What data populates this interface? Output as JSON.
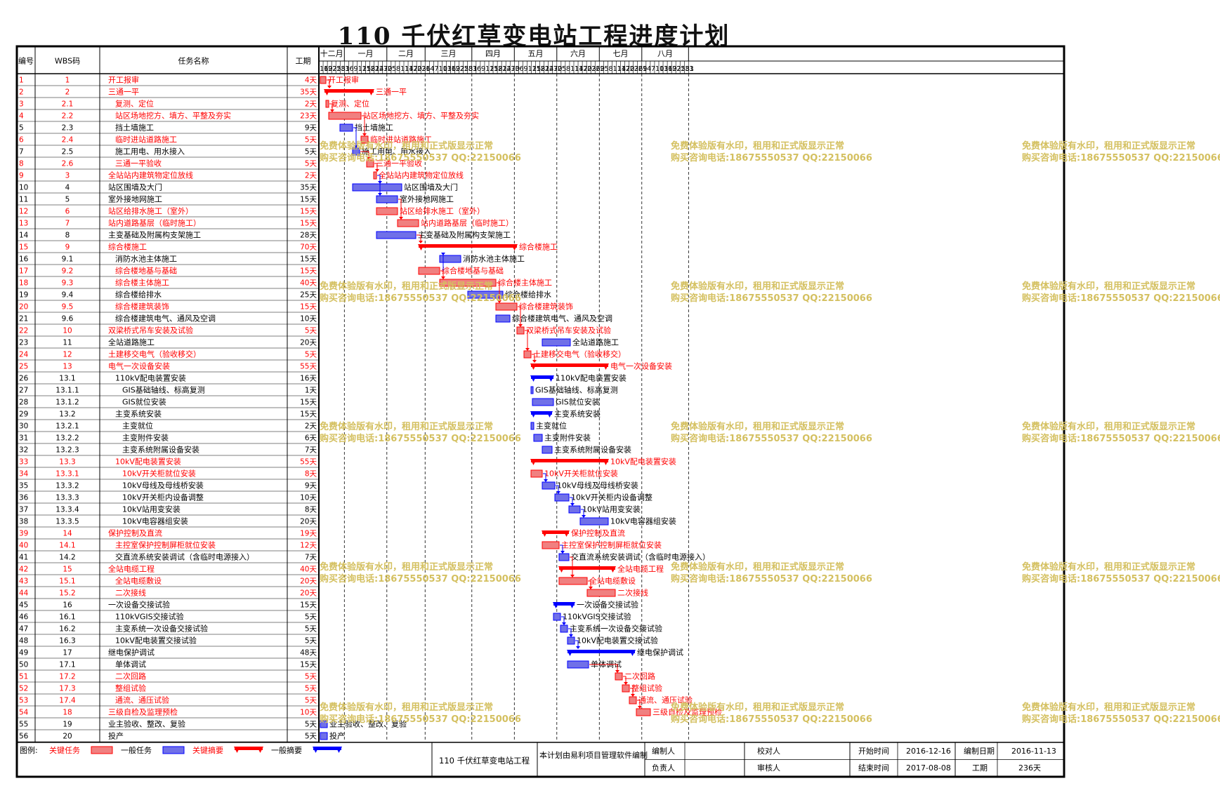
{
  "title": "110 千伏红草变电站工程进度计划",
  "headers": {
    "no": "编号",
    "wbs": "WBS码",
    "name": "任务名称",
    "dur": "工期"
  },
  "chart_data": {
    "type": "gantt",
    "months": [
      {
        "label": "十二月",
        "days": [
          "16",
          "19",
          "22",
          "25",
          "28",
          "31"
        ]
      },
      {
        "label": "一月",
        "days": [
          "3",
          "6",
          "9",
          "12",
          "15",
          "18",
          "21",
          "24",
          "27",
          "30"
        ]
      },
      {
        "label": "二月",
        "days": [
          "2",
          "5",
          "8",
          "11",
          "14",
          "17",
          "20",
          "23",
          "26"
        ]
      },
      {
        "label": "三月",
        "days": [
          "1",
          "4",
          "7",
          "10",
          "13",
          "16",
          "19",
          "22",
          "25",
          "28",
          "31"
        ]
      },
      {
        "label": "四月",
        "days": [
          "3",
          "6",
          "9",
          "12",
          "15",
          "18",
          "21",
          "24",
          "27",
          "30"
        ]
      },
      {
        "label": "五月",
        "days": [
          "3",
          "6",
          "9",
          "12",
          "15",
          "18",
          "21",
          "24",
          "27",
          "30"
        ]
      },
      {
        "label": "六月",
        "days": [
          "2",
          "5",
          "8",
          "11",
          "14",
          "17",
          "20",
          "23",
          "26",
          "29"
        ]
      },
      {
        "label": "七月",
        "days": [
          "2",
          "5",
          "8",
          "11",
          "14",
          "17",
          "20",
          "23",
          "26",
          "29"
        ]
      },
      {
        "label": "八月",
        "days": [
          "1",
          "4",
          "7",
          "10",
          "13",
          "16",
          "19",
          "22",
          "25",
          "28",
          "31"
        ]
      },
      {
        "label": "",
        "days": [
          "3"
        ]
      }
    ],
    "tasks": [
      {
        "no": "1",
        "wbs": "1",
        "name": "开工报审",
        "dur": "4天",
        "start": 0,
        "days": 4,
        "kind": "ct"
      },
      {
        "no": "2",
        "wbs": "2",
        "name": "三通一平",
        "dur": "35天",
        "start": 3,
        "days": 35,
        "kind": "cs"
      },
      {
        "no": "3",
        "wbs": "2.1",
        "name": "复测、定位",
        "dur": "2天",
        "start": 4,
        "days": 2,
        "kind": "ct"
      },
      {
        "no": "4",
        "wbs": "2.2",
        "name": "站区场地挖方、填方、平整及夯实",
        "dur": "23天",
        "start": 6,
        "days": 23,
        "kind": "ct"
      },
      {
        "no": "5",
        "wbs": "2.3",
        "name": "挡土墙施工",
        "dur": "9天",
        "start": 14,
        "days": 9,
        "kind": "nt"
      },
      {
        "no": "6",
        "wbs": "2.4",
        "name": "临时进站道路施工",
        "dur": "5天",
        "start": 29,
        "days": 5,
        "kind": "ct"
      },
      {
        "no": "7",
        "wbs": "2.5",
        "name": "施工用电、用水接入",
        "dur": "5天",
        "start": 23,
        "days": 5,
        "kind": "nt"
      },
      {
        "no": "8",
        "wbs": "2.6",
        "name": "三通一平验收",
        "dur": "5天",
        "start": 33,
        "days": 5,
        "kind": "ct"
      },
      {
        "no": "9",
        "wbs": "3",
        "name": "全站站内建筑物定位放线",
        "dur": "2天",
        "start": 38,
        "days": 2,
        "kind": "ct"
      },
      {
        "no": "10",
        "wbs": "4",
        "name": "站区围墙及大门",
        "dur": "35天",
        "start": 23,
        "days": 35,
        "kind": "nt"
      },
      {
        "no": "11",
        "wbs": "5",
        "name": "室外接地网施工",
        "dur": "15天",
        "start": 40,
        "days": 15,
        "kind": "nt"
      },
      {
        "no": "12",
        "wbs": "6",
        "name": "站区给排水施工（室外）",
        "dur": "15天",
        "start": 40,
        "days": 15,
        "kind": "ct"
      },
      {
        "no": "13",
        "wbs": "7",
        "name": "站内道路基层（临时施工）",
        "dur": "15天",
        "start": 55,
        "days": 15,
        "kind": "ct"
      },
      {
        "no": "14",
        "wbs": "8",
        "name": "主变基础及附属构支架施工",
        "dur": "28天",
        "start": 40,
        "days": 28,
        "kind": "nt"
      },
      {
        "no": "15",
        "wbs": "9",
        "name": "综合楼施工",
        "dur": "70天",
        "start": 70,
        "days": 70,
        "kind": "cs"
      },
      {
        "no": "16",
        "wbs": "9.1",
        "name": "消防水池主体施工",
        "dur": "15天",
        "start": 85,
        "days": 15,
        "kind": "nt"
      },
      {
        "no": "17",
        "wbs": "9.2",
        "name": "综合楼地基与基础",
        "dur": "15天",
        "start": 70,
        "days": 15,
        "kind": "ct"
      },
      {
        "no": "18",
        "wbs": "9.3",
        "name": "综合楼主体施工",
        "dur": "40天",
        "start": 85,
        "days": 40,
        "kind": "ct"
      },
      {
        "no": "19",
        "wbs": "9.4",
        "name": "综合楼给排水",
        "dur": "25天",
        "start": 105,
        "days": 25,
        "kind": "nt"
      },
      {
        "no": "20",
        "wbs": "9.5",
        "name": "综合楼建筑装饰",
        "dur": "15天",
        "start": 125,
        "days": 15,
        "kind": "ct"
      },
      {
        "no": "21",
        "wbs": "9.6",
        "name": "综合楼建筑电气、通风及空调",
        "dur": "10天",
        "start": 125,
        "days": 10,
        "kind": "nt"
      },
      {
        "no": "22",
        "wbs": "10",
        "name": "双梁桥式吊车安装及试验",
        "dur": "5天",
        "start": 140,
        "days": 5,
        "kind": "ct"
      },
      {
        "no": "23",
        "wbs": "11",
        "name": "全站道路施工",
        "dur": "20天",
        "start": 158,
        "days": 20,
        "kind": "nt"
      },
      {
        "no": "24",
        "wbs": "12",
        "name": "土建移交电气（验收移交）",
        "dur": "5天",
        "start": 145,
        "days": 5,
        "kind": "ct"
      },
      {
        "no": "25",
        "wbs": "13",
        "name": "电气一次设备安装",
        "dur": "55天",
        "start": 150,
        "days": 55,
        "kind": "cs"
      },
      {
        "no": "26",
        "wbs": "13.1",
        "name": "110kV配电装置安装",
        "dur": "16天",
        "start": 150,
        "days": 16,
        "kind": "ns"
      },
      {
        "no": "27",
        "wbs": "13.1.1",
        "name": "GIS基础轴线、标高复测",
        "dur": "1天",
        "start": 150,
        "days": 1,
        "kind": "nt"
      },
      {
        "no": "28",
        "wbs": "13.1.2",
        "name": "GIS就位安装",
        "dur": "15天",
        "start": 151,
        "days": 15,
        "kind": "nt"
      },
      {
        "no": "29",
        "wbs": "13.2",
        "name": "主变系统安装",
        "dur": "15天",
        "start": 150,
        "days": 15,
        "kind": "ns"
      },
      {
        "no": "30",
        "wbs": "13.2.1",
        "name": "主变就位",
        "dur": "2天",
        "start": 150,
        "days": 2,
        "kind": "nt"
      },
      {
        "no": "31",
        "wbs": "13.2.2",
        "name": "主变附件安装",
        "dur": "6天",
        "start": 152,
        "days": 6,
        "kind": "nt"
      },
      {
        "no": "32",
        "wbs": "13.2.3",
        "name": "主变系统附属设备安装",
        "dur": "7天",
        "start": 158,
        "days": 7,
        "kind": "nt"
      },
      {
        "no": "33",
        "wbs": "13.3",
        "name": "10kV配电装置安装",
        "dur": "55天",
        "start": 150,
        "days": 55,
        "kind": "cs"
      },
      {
        "no": "34",
        "wbs": "13.3.1",
        "name": "10kV开关柜就位安装",
        "dur": "8天",
        "start": 150,
        "days": 8,
        "kind": "ct"
      },
      {
        "no": "35",
        "wbs": "13.3.2",
        "name": "10kV母线及母线桥安装",
        "dur": "9天",
        "start": 158,
        "days": 9,
        "kind": "nt"
      },
      {
        "no": "36",
        "wbs": "13.3.3",
        "name": "10kV开关柜内设备调整",
        "dur": "10天",
        "start": 167,
        "days": 10,
        "kind": "nt"
      },
      {
        "no": "37",
        "wbs": "13.3.4",
        "name": "10kV站用变安装",
        "dur": "8天",
        "start": 177,
        "days": 8,
        "kind": "nt"
      },
      {
        "no": "38",
        "wbs": "13.3.5",
        "name": "10kV电容器组安装",
        "dur": "20天",
        "start": 185,
        "days": 20,
        "kind": "nt"
      },
      {
        "no": "39",
        "wbs": "14",
        "name": "保护控制及直流",
        "dur": "19天",
        "start": 158,
        "days": 19,
        "kind": "cs"
      },
      {
        "no": "40",
        "wbs": "14.1",
        "name": "主控室保护控制屏柜就位安装",
        "dur": "12天",
        "start": 158,
        "days": 12,
        "kind": "ct"
      },
      {
        "no": "41",
        "wbs": "14.2",
        "name": "交直流系统安装调试（含临时电源接入）",
        "dur": "7天",
        "start": 170,
        "days": 7,
        "kind": "nt"
      },
      {
        "no": "42",
        "wbs": "15",
        "name": "全站电缆工程",
        "dur": "40天",
        "start": 170,
        "days": 40,
        "kind": "cs"
      },
      {
        "no": "43",
        "wbs": "15.1",
        "name": "全站电缆敷设",
        "dur": "20天",
        "start": 170,
        "days": 20,
        "kind": "ct"
      },
      {
        "no": "44",
        "wbs": "15.2",
        "name": "二次接线",
        "dur": "20天",
        "start": 190,
        "days": 20,
        "kind": "ct"
      },
      {
        "no": "45",
        "wbs": "16",
        "name": "一次设备交接试验",
        "dur": "15天",
        "start": 166,
        "days": 15,
        "kind": "ns"
      },
      {
        "no": "46",
        "wbs": "16.1",
        "name": "110kVGIS交接试验",
        "dur": "5天",
        "start": 166,
        "days": 5,
        "kind": "nt"
      },
      {
        "no": "47",
        "wbs": "16.2",
        "name": "主变系统一次设备交接试验",
        "dur": "5天",
        "start": 171,
        "days": 5,
        "kind": "nt"
      },
      {
        "no": "48",
        "wbs": "16.3",
        "name": "10kV配电装置交接试验",
        "dur": "5天",
        "start": 176,
        "days": 5,
        "kind": "nt"
      },
      {
        "no": "49",
        "wbs": "17",
        "name": "继电保护调试",
        "dur": "48天",
        "start": 176,
        "days": 48,
        "kind": "ns"
      },
      {
        "no": "50",
        "wbs": "17.1",
        "name": "单体调试",
        "dur": "15天",
        "start": 176,
        "days": 15,
        "kind": "nt"
      },
      {
        "no": "51",
        "wbs": "17.2",
        "name": "二次回路",
        "dur": "5天",
        "start": 210,
        "days": 5,
        "kind": "ct"
      },
      {
        "no": "52",
        "wbs": "17.3",
        "name": "整组试验",
        "dur": "5天",
        "start": 215,
        "days": 5,
        "kind": "ct"
      },
      {
        "no": "53",
        "wbs": "17.4",
        "name": "通流、通压试验",
        "dur": "5天",
        "start": 220,
        "days": 5,
        "kind": "ct"
      },
      {
        "no": "54",
        "wbs": "18",
        "name": "三级自检及监理预检",
        "dur": "10天",
        "start": 225,
        "days": 10,
        "kind": "ct"
      },
      {
        "no": "55",
        "wbs": "19",
        "name": "业主验收、整改、复验",
        "dur": "5天",
        "start": 0,
        "days": 5,
        "kind": "nt"
      },
      {
        "no": "56",
        "wbs": "20",
        "name": "投产",
        "dur": "5天",
        "start": 0,
        "days": 5,
        "kind": "nt"
      }
    ]
  },
  "legend": {
    "label": "图例:",
    "items": [
      {
        "label": "关键任务",
        "kind": "ct"
      },
      {
        "label": "一般任务",
        "kind": "nt"
      },
      {
        "label": "关键摘要",
        "kind": "cs"
      },
      {
        "label": "一般摘要",
        "kind": "ns"
      }
    ]
  },
  "footer": {
    "project": "110 千伏红草变电站工程",
    "note": "本计划由易利项目管理软件编制",
    "compiler_label": "编制人",
    "owner_label": "负责人",
    "checker_label": "校对人",
    "reviewer_label": "审核人",
    "start_label": "开始时间",
    "start_value": "2016-12-16",
    "end_label": "结束时间",
    "end_value": "2017-08-08",
    "date_label": "编制日期",
    "date_value": "2016-11-13",
    "duration_label": "工期",
    "duration_value": "236天"
  },
  "watermark": [
    "免费体验版有水印，租用和正式版显示正常",
    "购买咨询电话:18675550537 QQ:22150066"
  ],
  "colors": {
    "critical": "#ff0000",
    "normal": "#0000ff",
    "critical_fill": "#f08080",
    "normal_fill": "#7070e8",
    "watermark": "#d4c060"
  }
}
